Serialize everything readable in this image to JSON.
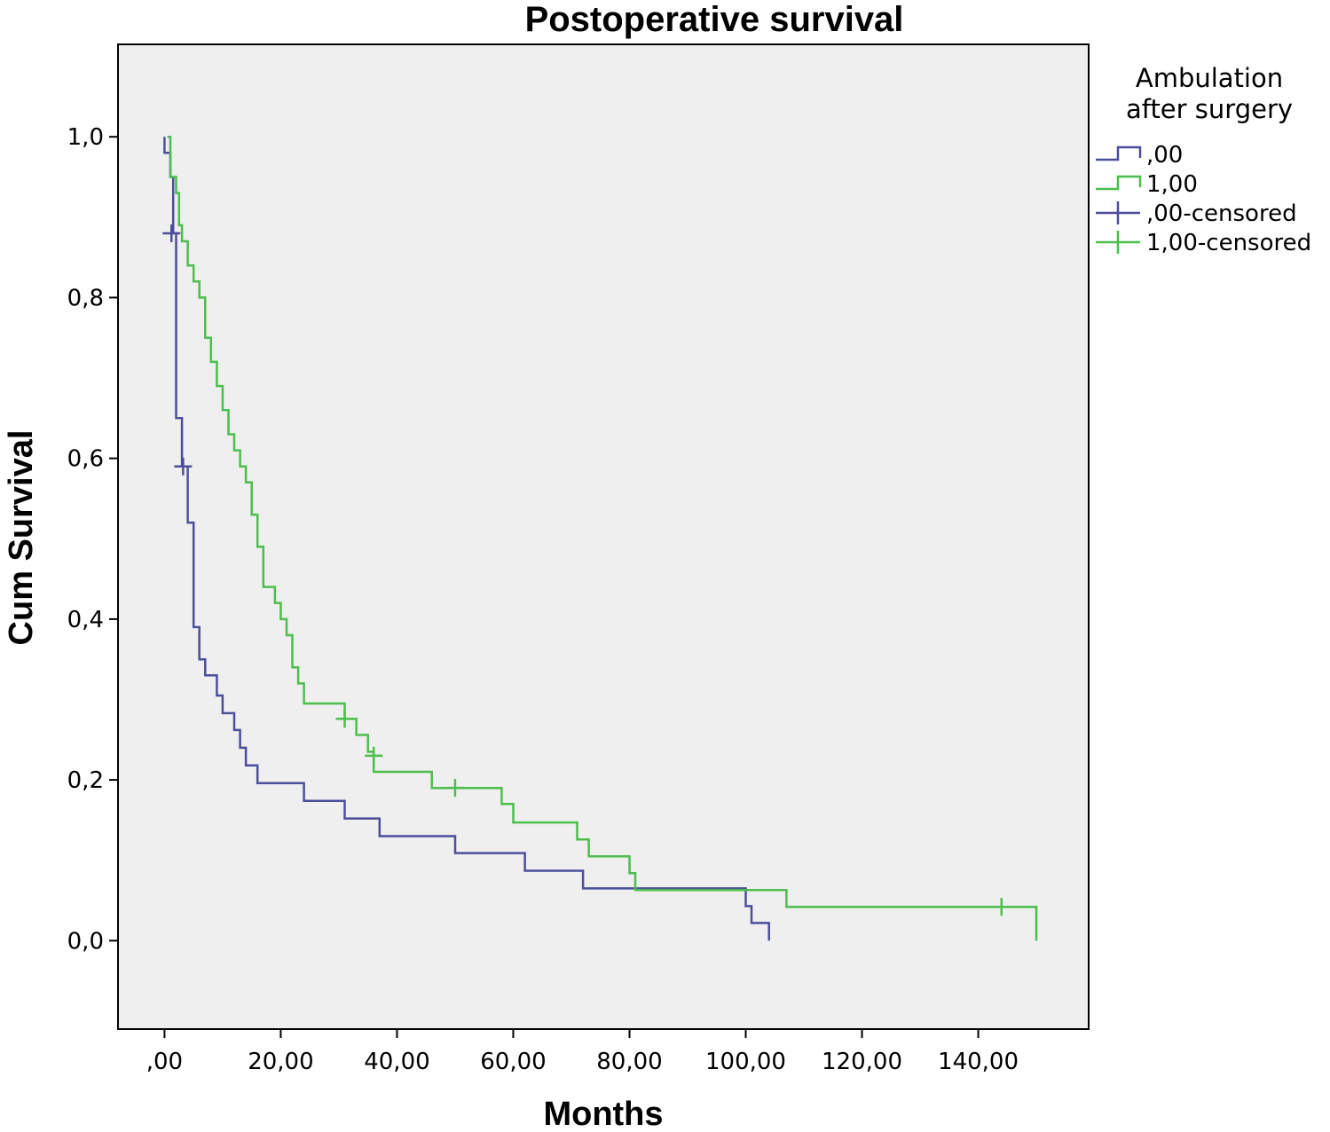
{
  "chart_data": {
    "type": "line",
    "subtype": "kaplan-meier step",
    "title": "Postoperative survival",
    "xlabel": "Months",
    "ylabel": "Cum Survival",
    "xlim": [
      -8,
      159
    ],
    "ylim": [
      -0.11,
      1.115
    ],
    "x_ticks": [
      0,
      20,
      40,
      60,
      80,
      100,
      120,
      140
    ],
    "x_tick_labels": [
      ",00",
      "20,00",
      "40,00",
      "60,00",
      "80,00",
      "100,00",
      "120,00",
      "140,00"
    ],
    "y_ticks": [
      0,
      0.2,
      0.4,
      0.6,
      0.8,
      1.0
    ],
    "y_tick_labels": [
      "0,0",
      "0,2",
      "0,4",
      "0,6",
      "0,8",
      "1,0"
    ],
    "grid": false,
    "plot_background": "#efefef",
    "legend": {
      "title_lines": [
        "Ambulation",
        "after surgery"
      ],
      "placement": "right-top-outside",
      "entries": [
        {
          "label": ",00",
          "kind": "line",
          "color": "#4c4e9b"
        },
        {
          "label": "1,00",
          "kind": "line",
          "color": "#4cbe4c"
        },
        {
          "label": ",00-censored",
          "kind": "censor",
          "color": "#4c4e9b"
        },
        {
          "label": "1,00-censored",
          "kind": "censor",
          "color": "#4cbe4c"
        }
      ]
    },
    "series": [
      {
        "name": ",00",
        "color": "#4c4e9b",
        "points": [
          [
            0,
            1.0
          ],
          [
            0,
            0.98
          ],
          [
            1,
            0.98
          ],
          [
            1,
            0.95
          ],
          [
            1.5,
            0.95
          ],
          [
            1.5,
            0.88
          ],
          [
            2,
            0.88
          ],
          [
            2,
            0.8
          ],
          [
            2,
            0.7
          ],
          [
            2,
            0.65
          ],
          [
            3,
            0.65
          ],
          [
            3,
            0.59
          ],
          [
            4,
            0.59
          ],
          [
            4,
            0.55
          ],
          [
            4,
            0.52
          ],
          [
            5,
            0.52
          ],
          [
            5,
            0.39
          ],
          [
            6,
            0.39
          ],
          [
            6,
            0.35
          ],
          [
            7,
            0.35
          ],
          [
            7,
            0.33
          ],
          [
            9,
            0.33
          ],
          [
            9,
            0.305
          ],
          [
            10,
            0.305
          ],
          [
            10,
            0.283
          ],
          [
            12,
            0.283
          ],
          [
            12,
            0.262
          ],
          [
            13,
            0.262
          ],
          [
            13,
            0.24
          ],
          [
            14,
            0.24
          ],
          [
            14,
            0.218
          ],
          [
            16,
            0.218
          ],
          [
            16,
            0.196
          ],
          [
            24,
            0.196
          ],
          [
            24,
            0.174
          ],
          [
            31,
            0.174
          ],
          [
            31,
            0.152
          ],
          [
            37,
            0.152
          ],
          [
            37,
            0.13
          ],
          [
            50,
            0.13
          ],
          [
            50,
            0.109
          ],
          [
            62,
            0.109
          ],
          [
            62,
            0.087
          ],
          [
            72,
            0.087
          ],
          [
            72,
            0.065
          ],
          [
            100,
            0.065
          ],
          [
            100,
            0.043
          ],
          [
            101,
            0.043
          ],
          [
            101,
            0.022
          ],
          [
            104,
            0.022
          ],
          [
            104,
            0.0
          ]
        ],
        "censored": [
          [
            1.2,
            0.88
          ],
          [
            3.2,
            0.59
          ]
        ]
      },
      {
        "name": "1,00",
        "color": "#4cbe4c",
        "points": [
          [
            0.5,
            1.0
          ],
          [
            1,
            1.0
          ],
          [
            1,
            0.95
          ],
          [
            2,
            0.95
          ],
          [
            2,
            0.93
          ],
          [
            2.5,
            0.93
          ],
          [
            2.5,
            0.89
          ],
          [
            3,
            0.89
          ],
          [
            3,
            0.87
          ],
          [
            4,
            0.87
          ],
          [
            4,
            0.84
          ],
          [
            5,
            0.84
          ],
          [
            5,
            0.82
          ],
          [
            6,
            0.82
          ],
          [
            6,
            0.8
          ],
          [
            7,
            0.8
          ],
          [
            7,
            0.75
          ],
          [
            8,
            0.75
          ],
          [
            8,
            0.72
          ],
          [
            9,
            0.72
          ],
          [
            9,
            0.69
          ],
          [
            10,
            0.69
          ],
          [
            10,
            0.66
          ],
          [
            11,
            0.66
          ],
          [
            11,
            0.63
          ],
          [
            12,
            0.63
          ],
          [
            12,
            0.61
          ],
          [
            13,
            0.61
          ],
          [
            13,
            0.59
          ],
          [
            14,
            0.59
          ],
          [
            14,
            0.57
          ],
          [
            15,
            0.57
          ],
          [
            15,
            0.53
          ],
          [
            16,
            0.53
          ],
          [
            16,
            0.49
          ],
          [
            17,
            0.49
          ],
          [
            17,
            0.44
          ],
          [
            19,
            0.44
          ],
          [
            19,
            0.42
          ],
          [
            20,
            0.42
          ],
          [
            20,
            0.4
          ],
          [
            21,
            0.4
          ],
          [
            21,
            0.38
          ],
          [
            22,
            0.38
          ],
          [
            22,
            0.34
          ],
          [
            23,
            0.34
          ],
          [
            23,
            0.32
          ],
          [
            24,
            0.32
          ],
          [
            24,
            0.295
          ],
          [
            31,
            0.295
          ],
          [
            31,
            0.276
          ],
          [
            33,
            0.276
          ],
          [
            33,
            0.256
          ],
          [
            35,
            0.256
          ],
          [
            35,
            0.235
          ],
          [
            36,
            0.235
          ],
          [
            36,
            0.21
          ],
          [
            46,
            0.21
          ],
          [
            46,
            0.19
          ],
          [
            58,
            0.19
          ],
          [
            58,
            0.17
          ],
          [
            60,
            0.17
          ],
          [
            60,
            0.147
          ],
          [
            71,
            0.147
          ],
          [
            71,
            0.126
          ],
          [
            73,
            0.126
          ],
          [
            73,
            0.105
          ],
          [
            80,
            0.105
          ],
          [
            80,
            0.084
          ],
          [
            81,
            0.084
          ],
          [
            81,
            0.063
          ],
          [
            107,
            0.063
          ],
          [
            107,
            0.042
          ],
          [
            150,
            0.042
          ],
          [
            150,
            0.0
          ]
        ],
        "censored": [
          [
            31,
            0.276
          ],
          [
            36,
            0.23
          ],
          [
            50,
            0.19
          ],
          [
            144,
            0.042
          ]
        ]
      }
    ]
  }
}
